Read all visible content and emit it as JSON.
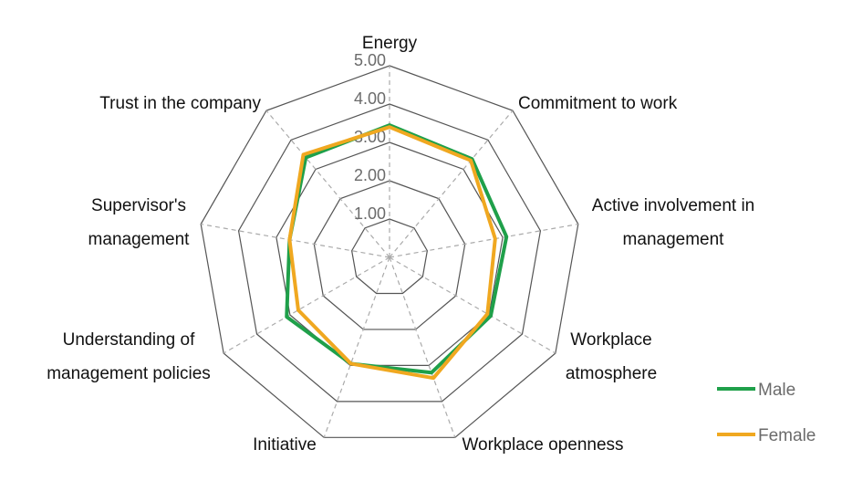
{
  "chart_data": {
    "type": "radar",
    "title": "",
    "axes": [
      "Energy",
      "Commitment to work",
      "Active involvement in management",
      "Workplace atmosphere",
      "Workplace openness",
      "Initiative",
      "Understanding of management policies",
      "Supervisor's management",
      "Trust in the company"
    ],
    "axis_label_lines": [
      [
        "Energy"
      ],
      [
        "Commitment to work"
      ],
      [
        "Active involvement in",
        "management"
      ],
      [
        "Workplace",
        "atmosphere"
      ],
      [
        "Workplace openness"
      ],
      [
        "Initiative"
      ],
      [
        "Understanding of",
        "management policies"
      ],
      [
        "Supervisor's",
        "management"
      ],
      [
        "Trust in the company"
      ]
    ],
    "range": [
      0,
      5
    ],
    "ticks": [
      1,
      2,
      3,
      4,
      5
    ],
    "tick_labels": [
      "1.00",
      "2.00",
      "3.00",
      "4.00",
      "5.00"
    ],
    "series": [
      {
        "name": "Male",
        "color": "#1fa04a",
        "values": [
          3.45,
          3.35,
          3.1,
          3.05,
          3.2,
          2.95,
          3.1,
          2.65,
          3.4
        ]
      },
      {
        "name": "Female",
        "color": "#f0a820",
        "values": [
          3.4,
          3.3,
          2.8,
          2.95,
          3.35,
          2.95,
          2.75,
          2.65,
          3.5
        ]
      }
    ],
    "grid": true,
    "legend": {
      "position": "right"
    }
  }
}
